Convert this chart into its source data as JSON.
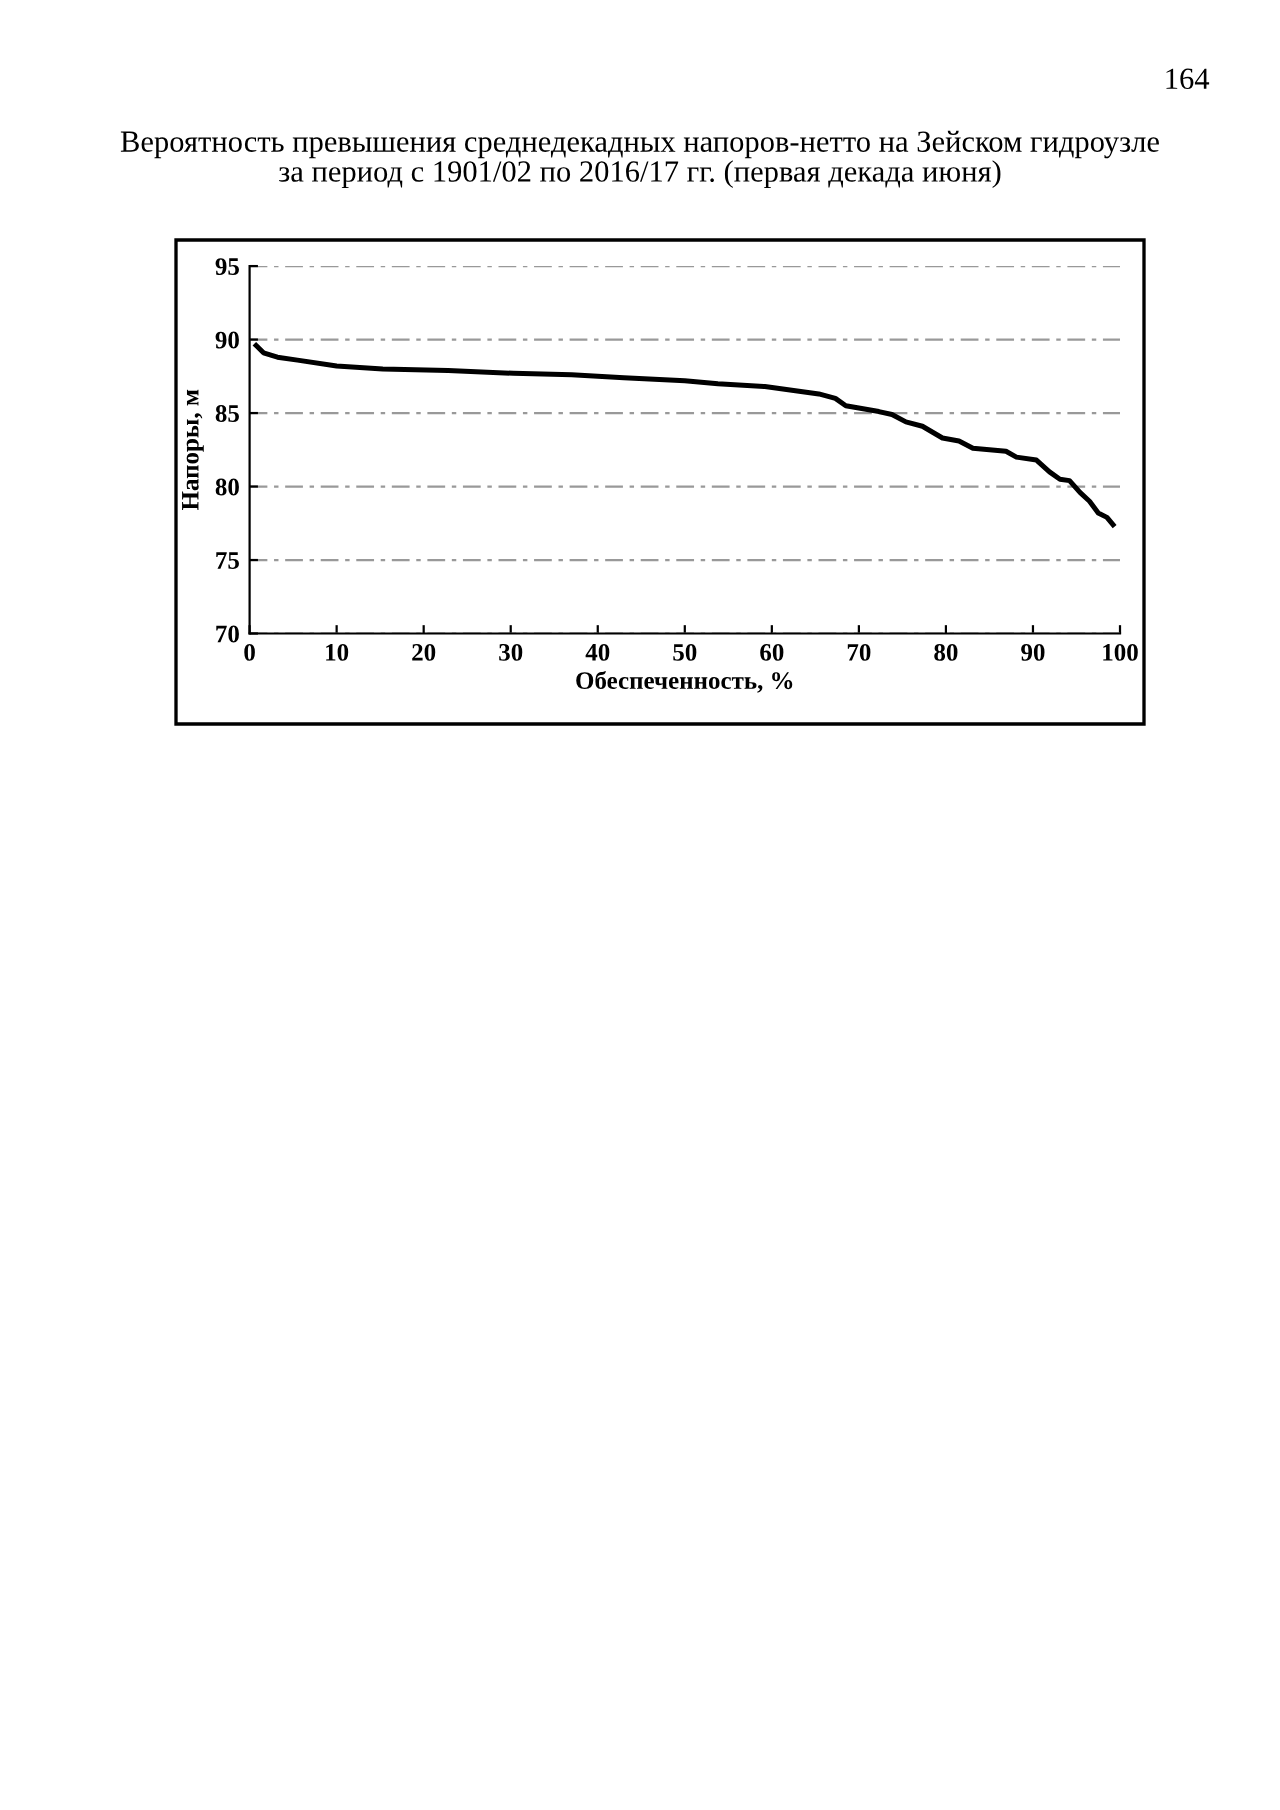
{
  "chart_data": {
    "type": "line",
    "title": "Вероятность превышения среднедекадных напоров-нетто на Зейском гидроузле\nза период с 1901/02 по 2016/17 гг. (первая декада июня)",
    "xlabel": "Обеспеченность, %",
    "ylabel": "Напоры, м",
    "annotations": [
      "164"
    ],
    "series": [
      {
        "color": "#000000",
        "x": [
          0.75,
          1.6,
          3.2,
          5.5,
          10,
          15.3,
          22.8,
          30.3,
          37,
          43,
          50,
          53.8,
          59.2,
          65.4,
          67.3,
          68.5,
          72.3,
          73.8,
          75.4,
          77.3,
          79.6,
          81.5,
          83.1,
          86.9,
          88.1,
          90.4,
          91.9,
          93.1,
          94.2,
          95.4,
          96.5,
          97.5,
          98.5,
          99.2
        ],
        "values": [
          89.6,
          89.1,
          88.8,
          88.6,
          88.2,
          88.0,
          87.9,
          87.7,
          87.6,
          87.4,
          87.2,
          87.0,
          86.8,
          86.3,
          86.0,
          85.5,
          85.1,
          84.9,
          84.4,
          84.1,
          83.3,
          83.1,
          82.6,
          82.4,
          82.0,
          81.8,
          81.0,
          80.5,
          80.4,
          79.6,
          79.0,
          78.2,
          77.9,
          77.4
        ]
      }
    ],
    "xlim": [
      0,
      100
    ],
    "ylim": [
      70,
      95
    ],
    "xticks": [
      0,
      10,
      20,
      30,
      40,
      50,
      60,
      70,
      80,
      90,
      100
    ],
    "yticks": [
      70,
      75,
      80,
      85,
      90,
      95
    ],
    "grid": "y",
    "marker": "none",
    "line_style": "solid",
    "legend": false
  }
}
